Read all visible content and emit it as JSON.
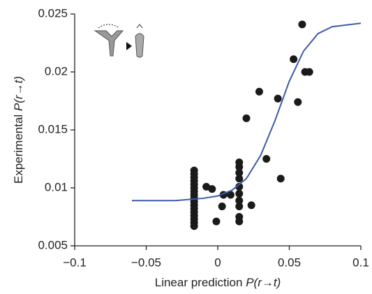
{
  "chart_data": {
    "type": "scatter",
    "x_label": {
      "text": "Linear prediction",
      "math": "P(r→t)"
    },
    "y_label": {
      "text": "Experimental",
      "math": "P(r→t)"
    },
    "xlim": [
      -0.1,
      0.1
    ],
    "ylim": [
      0.005,
      0.025
    ],
    "xticks": [
      {
        "value": -0.1,
        "label": "−0.1"
      },
      {
        "value": -0.05,
        "label": "−0.05"
      },
      0,
      0.05,
      0.1
    ],
    "yticks": [
      0.005,
      0.01,
      0.015,
      0.02,
      0.025
    ],
    "series": [
      {
        "color": "#1a1a1a",
        "x": [
          -0.0165,
          -0.0165,
          -0.0165,
          -0.0165,
          -0.0165,
          -0.0165,
          -0.0165,
          -0.0165,
          -0.0165,
          -0.0165,
          -0.0165,
          -0.0165,
          -0.0165,
          -0.0165,
          -0.0165,
          -0.0165,
          -0.0165,
          -0.008,
          -0.004,
          -0.001,
          0.003,
          0.004,
          0.009,
          0.015,
          0.015,
          0.015,
          0.015,
          0.015,
          0.015,
          0.015,
          0.015,
          0.015,
          0.015,
          0.0235,
          0.02,
          0.029,
          0.034,
          0.042,
          0.044,
          0.053,
          0.056,
          0.059,
          0.061,
          0.064
        ],
        "values": [
          0.0067,
          0.007,
          0.0073,
          0.0076,
          0.0079,
          0.0082,
          0.0085,
          0.0088,
          0.0091,
          0.0094,
          0.0097,
          0.01,
          0.0103,
          0.0106,
          0.0109,
          0.0112,
          0.0115,
          0.0101,
          0.0099,
          0.0071,
          0.0084,
          0.0094,
          0.0094,
          0.0071,
          0.0075,
          0.0084,
          0.0089,
          0.0095,
          0.0101,
          0.0108,
          0.0113,
          0.0118,
          0.0122,
          0.0085,
          0.016,
          0.0183,
          0.0125,
          0.0177,
          0.0108,
          0.0211,
          0.0174,
          0.0241,
          0.02,
          0.02
        ]
      }
    ],
    "fit": {
      "color": "#3f5aa8",
      "x": [
        -0.06,
        -0.03,
        -0.01,
        0,
        0.01,
        0.02,
        0.03,
        0.04,
        0.05,
        0.06,
        0.07,
        0.08,
        0.1
      ],
      "values": [
        0.0089,
        0.0089,
        0.0091,
        0.0093,
        0.0098,
        0.0108,
        0.0128,
        0.0158,
        0.0192,
        0.0218,
        0.0233,
        0.0239,
        0.0242
      ]
    }
  }
}
